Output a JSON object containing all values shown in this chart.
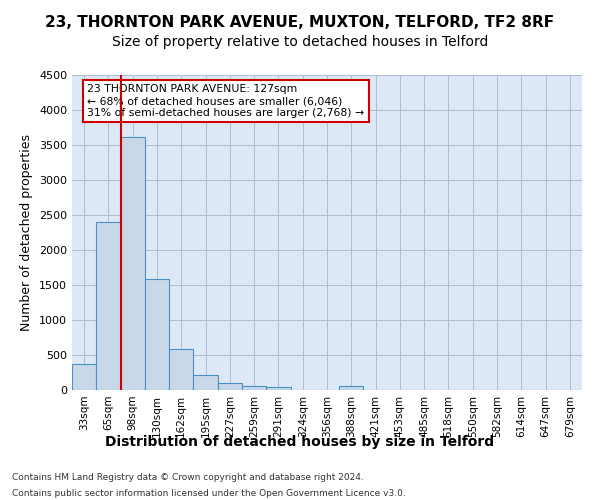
{
  "title1": "23, THORNTON PARK AVENUE, MUXTON, TELFORD, TF2 8RF",
  "title2": "Size of property relative to detached houses in Telford",
  "xlabel": "Distribution of detached houses by size in Telford",
  "ylabel": "Number of detached properties",
  "footer1": "Contains HM Land Registry data © Crown copyright and database right 2024.",
  "footer2": "Contains public sector information licensed under the Open Government Licence v3.0.",
  "bins": [
    "33sqm",
    "65sqm",
    "98sqm",
    "130sqm",
    "162sqm",
    "195sqm",
    "227sqm",
    "259sqm",
    "291sqm",
    "324sqm",
    "356sqm",
    "388sqm",
    "421sqm",
    "453sqm",
    "485sqm",
    "518sqm",
    "550sqm",
    "582sqm",
    "614sqm",
    "647sqm",
    "679sqm"
  ],
  "values": [
    370,
    2400,
    3620,
    1580,
    590,
    220,
    105,
    60,
    40,
    0,
    0,
    60,
    0,
    0,
    0,
    0,
    0,
    0,
    0,
    0,
    0
  ],
  "bar_color": "#c8d8e8",
  "bar_edge_color": "#4a90c4",
  "vline_x": 2,
  "vline_color": "#cc0000",
  "annotation_text": "23 THORNTON PARK AVENUE: 127sqm\n← 68% of detached houses are smaller (6,046)\n31% of semi-detached houses are larger (2,768) →",
  "annotation_box_color": "#ffffff",
  "annotation_box_edge": "#cc0000",
  "ylim": [
    0,
    4500
  ],
  "yticks": [
    0,
    500,
    1000,
    1500,
    2000,
    2500,
    3000,
    3500,
    4000,
    4500
  ],
  "plot_bg": "#dce8f5",
  "title1_fontsize": 11,
  "title2_fontsize": 10,
  "xlabel_fontsize": 10,
  "ylabel_fontsize": 9
}
